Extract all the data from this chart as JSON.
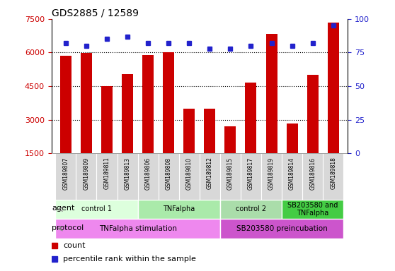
{
  "title": "GDS2885 / 12589",
  "samples": [
    "GSM189807",
    "GSM189809",
    "GSM189811",
    "GSM189813",
    "GSM189806",
    "GSM189808",
    "GSM189810",
    "GSM189812",
    "GSM189815",
    "GSM189817",
    "GSM189819",
    "GSM189814",
    "GSM189816",
    "GSM189818"
  ],
  "counts": [
    5850,
    5970,
    4500,
    5050,
    5880,
    6020,
    3480,
    3490,
    2700,
    4660,
    6820,
    2820,
    5020,
    7350
  ],
  "percentile_ranks": [
    82,
    80,
    85,
    87,
    82,
    82,
    82,
    78,
    78,
    80,
    82,
    80,
    82,
    95
  ],
  "ylim_left": [
    1500,
    7500
  ],
  "ylim_right": [
    0,
    100
  ],
  "yticks_left": [
    1500,
    3000,
    4500,
    6000,
    7500
  ],
  "yticks_right": [
    0,
    25,
    50,
    75,
    100
  ],
  "bar_color": "#cc0000",
  "dot_color": "#2222cc",
  "agent_groups": [
    {
      "label": "control 1",
      "start": 0,
      "end": 4,
      "color": "#ddffdd"
    },
    {
      "label": "TNFalpha",
      "start": 4,
      "end": 8,
      "color": "#aaeaaa"
    },
    {
      "label": "control 2",
      "start": 8,
      "end": 11,
      "color": "#aaddaa"
    },
    {
      "label": "SB203580 and\nTNFalpha",
      "start": 11,
      "end": 14,
      "color": "#44cc44"
    }
  ],
  "protocol_groups": [
    {
      "label": "TNFalpha stimulation",
      "start": 0,
      "end": 8,
      "color": "#ee88ee"
    },
    {
      "label": "SB203580 preincubation",
      "start": 8,
      "end": 14,
      "color": "#cc55cc"
    }
  ],
  "bar_color_legend": "#cc0000",
  "dot_color_legend": "#2222cc",
  "grid_vals": [
    3000,
    4500,
    6000
  ],
  "left_label_color": "#cc0000",
  "right_label_color": "#2222cc",
  "fig_width": 5.58,
  "fig_height": 3.84,
  "dpi": 100
}
